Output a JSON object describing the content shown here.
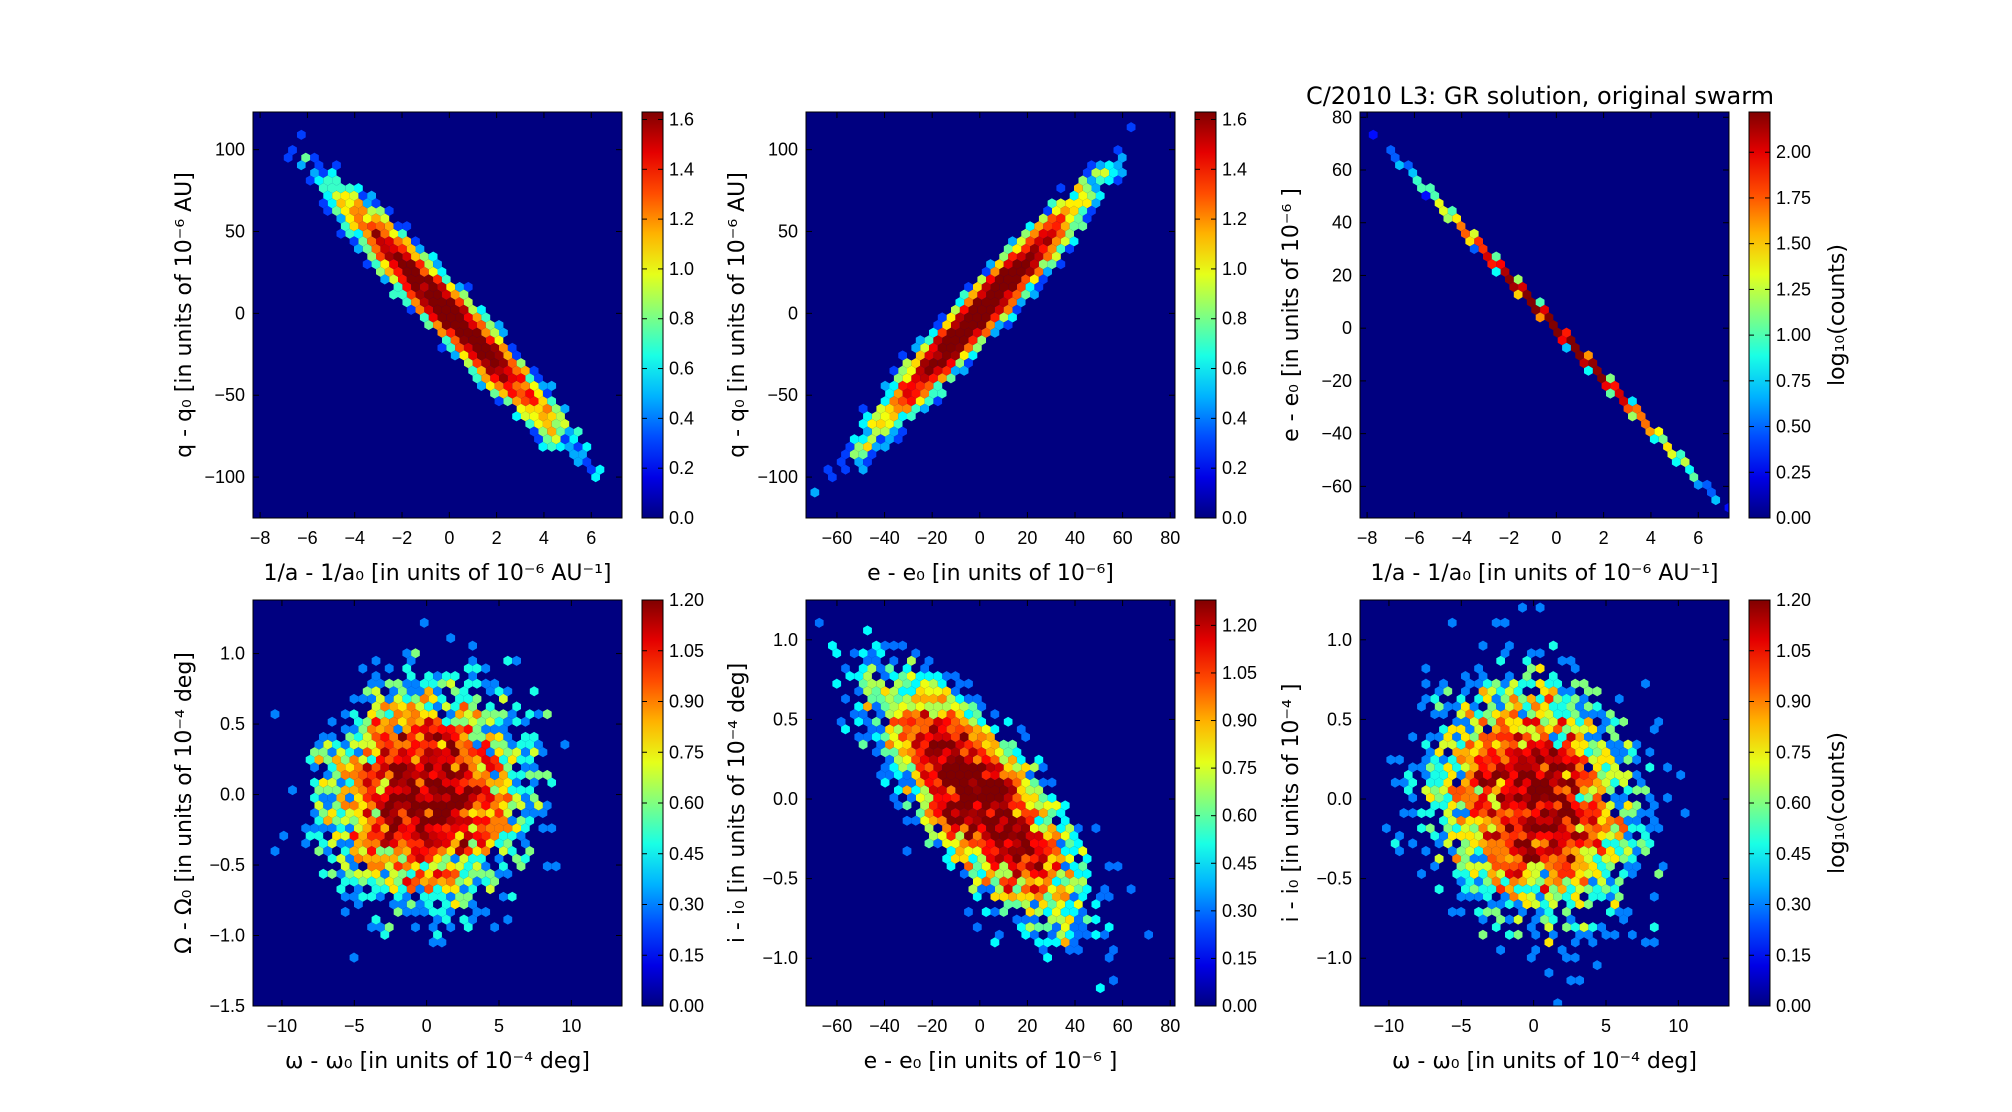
{
  "title": "C/2010 L3:  GR solution, original swarm",
  "chart_data": [
    {
      "type": "hexbin",
      "xlabel": "1/a - 1/a₀ [in units of 10⁻⁶ AU⁻¹]",
      "ylabel": "q - q₀ [in units of 10⁻⁶ AU]",
      "xlim": [
        -8.3,
        7.3
      ],
      "ylim": [
        -125,
        123
      ],
      "xticks": [
        -8,
        -6,
        -4,
        -2,
        0,
        2,
        4,
        6
      ],
      "xtick_labels": [
        "−8",
        "−6",
        "−4",
        "−2",
        "0",
        "2",
        "4",
        "6"
      ],
      "yticks": [
        -100,
        -50,
        0,
        50,
        100
      ],
      "ytick_labels": [
        "−100",
        "−50",
        "0",
        "50",
        "100"
      ],
      "distribution": {
        "sigma": [
          2.3,
          36
        ],
        "corr": -0.97,
        "n": 5000,
        "seed": 11
      },
      "colorbar": {
        "range": [
          0,
          1.63
        ],
        "ticks": [
          0,
          0.2,
          0.4,
          0.6,
          0.8,
          1.0,
          1.2,
          1.4,
          1.6
        ],
        "tick_labels": [
          "0.0",
          "0.2",
          "0.4",
          "0.6",
          "0.8",
          "1.0",
          "1.2",
          "1.4",
          "1.6"
        ],
        "label": ""
      }
    },
    {
      "type": "hexbin",
      "xlabel": "e - e₀ [in units of 10⁻⁶]",
      "ylabel": "q - q₀ [in units of 10⁻⁶ AU]",
      "xlim": [
        -73,
        82
      ],
      "ylim": [
        -125,
        123
      ],
      "xticks": [
        -60,
        -40,
        -20,
        0,
        20,
        40,
        60,
        80
      ],
      "xtick_labels": [
        "−60",
        "−40",
        "−20",
        "0",
        "20",
        "40",
        "60",
        "80"
      ],
      "yticks": [
        -100,
        -50,
        0,
        50,
        100
      ],
      "ytick_labels": [
        "−100",
        "−50",
        "0",
        "50",
        "100"
      ],
      "distribution": {
        "sigma": [
          22,
          36
        ],
        "corr": 0.97,
        "n": 5000,
        "seed": 23
      },
      "colorbar": {
        "range": [
          0,
          1.63
        ],
        "ticks": [
          0,
          0.2,
          0.4,
          0.6,
          0.8,
          1.0,
          1.2,
          1.4,
          1.6
        ],
        "tick_labels": [
          "0.0",
          "0.2",
          "0.4",
          "0.6",
          "0.8",
          "1.0",
          "1.2",
          "1.4",
          "1.6"
        ],
        "label": ""
      }
    },
    {
      "type": "hexbin",
      "xlabel": "1/a - 1/a₀ [in units of 10⁻⁶ AU⁻¹]",
      "ylabel": "e - e₀ [in units of 10⁻⁶ ]",
      "xlim": [
        -8.3,
        7.3
      ],
      "ylim": [
        -72,
        82
      ],
      "xticks": [
        -8,
        -6,
        -4,
        -2,
        0,
        2,
        4,
        6
      ],
      "xtick_labels": [
        "−8",
        "−6",
        "−4",
        "−2",
        "0",
        "2",
        "4",
        "6"
      ],
      "yticks": [
        -60,
        -40,
        -20,
        0,
        20,
        40,
        60,
        80
      ],
      "ytick_labels": [
        "−60",
        "−40",
        "−20",
        "0",
        "20",
        "40",
        "60",
        "80"
      ],
      "distribution": {
        "sigma": [
          2.3,
          22
        ],
        "corr": -0.9998,
        "n": 5000,
        "seed": 37
      },
      "colorbar": {
        "range": [
          0,
          2.22
        ],
        "ticks": [
          0,
          0.25,
          0.5,
          0.75,
          1.0,
          1.25,
          1.5,
          1.75,
          2.0
        ],
        "tick_labels": [
          "0.00",
          "0.25",
          "0.50",
          "0.75",
          "1.00",
          "1.25",
          "1.50",
          "1.75",
          "2.00"
        ],
        "label": "log₁₀(counts)"
      }
    },
    {
      "type": "hexbin",
      "xlabel": "ω - ω₀ [in units of 10⁻⁴ deg]",
      "ylabel": "Ω - Ω₀ [in units of 10⁻⁴ deg]",
      "xlim": [
        -12,
        13.5
      ],
      "ylim": [
        -1.5,
        1.38
      ],
      "xticks": [
        -10,
        -5,
        0,
        5,
        10
      ],
      "xtick_labels": [
        "−10",
        "−5",
        "0",
        "5",
        "10"
      ],
      "yticks": [
        -1.5,
        -1.0,
        -0.5,
        0.0,
        0.5,
        1.0
      ],
      "ytick_labels": [
        "−1.5",
        "−1.0",
        "−0.5",
        "0.0",
        "0.5",
        "1.0"
      ],
      "distribution": {
        "sigma": [
          3.6,
          0.42
        ],
        "corr": 0.05,
        "n": 5000,
        "seed": 41
      },
      "colorbar": {
        "range": [
          0,
          1.2
        ],
        "ticks": [
          0,
          0.15,
          0.3,
          0.45,
          0.6,
          0.75,
          0.9,
          1.05,
          1.2
        ],
        "tick_labels": [
          "0.00",
          "0.15",
          "0.30",
          "0.45",
          "0.60",
          "0.75",
          "0.90",
          "1.05",
          "1.20"
        ],
        "label": ""
      }
    },
    {
      "type": "hexbin",
      "xlabel": "e - e₀ [in units of 10⁻⁶ ]",
      "ylabel": "i - i₀ [in units of 10⁻⁴ deg]",
      "xlim": [
        -73,
        82
      ],
      "ylim": [
        -1.3,
        1.25
      ],
      "xticks": [
        -60,
        -40,
        -20,
        0,
        20,
        40,
        60,
        80
      ],
      "xtick_labels": [
        "−60",
        "−40",
        "−20",
        "0",
        "20",
        "40",
        "60",
        "80"
      ],
      "yticks": [
        -1.0,
        -0.5,
        0.0,
        0.5,
        1.0
      ],
      "ytick_labels": [
        "−1.0",
        "−0.5",
        "0.0",
        "0.5",
        "1.0"
      ],
      "distribution": {
        "sigma": [
          22,
          0.4
        ],
        "corr": -0.75,
        "n": 5000,
        "seed": 53
      },
      "colorbar": {
        "range": [
          0,
          1.28
        ],
        "ticks": [
          0,
          0.15,
          0.3,
          0.45,
          0.6,
          0.75,
          0.9,
          1.05,
          1.2
        ],
        "tick_labels": [
          "0.00",
          "0.15",
          "0.30",
          "0.45",
          "0.60",
          "0.75",
          "0.90",
          "1.05",
          "1.20"
        ],
        "label": ""
      }
    },
    {
      "type": "hexbin",
      "xlabel": "ω - ω₀ [in units of 10⁻⁴ deg]",
      "ylabel": "i - i₀ [in units of 10⁻⁴ ]",
      "xlim": [
        -12,
        13.5
      ],
      "ylim": [
        -1.3,
        1.25
      ],
      "xticks": [
        -10,
        -5,
        0,
        5,
        10
      ],
      "xtick_labels": [
        "−10",
        "−5",
        "0",
        "5",
        "10"
      ],
      "yticks": [
        -1.0,
        -0.5,
        0.0,
        0.5,
        1.0
      ],
      "ytick_labels": [
        "−1.0",
        "−0.5",
        "0.0",
        "0.5",
        "1.0"
      ],
      "distribution": {
        "sigma": [
          3.8,
          0.4
        ],
        "corr": -0.15,
        "n": 5000,
        "seed": 67
      },
      "colorbar": {
        "range": [
          0,
          1.2
        ],
        "ticks": [
          0,
          0.15,
          0.3,
          0.45,
          0.6,
          0.75,
          0.9,
          1.05,
          1.2
        ],
        "tick_labels": [
          "0.00",
          "0.15",
          "0.30",
          "0.45",
          "0.60",
          "0.75",
          "0.90",
          "1.05",
          "1.20"
        ],
        "label": "log₁₀(counts)"
      }
    }
  ]
}
